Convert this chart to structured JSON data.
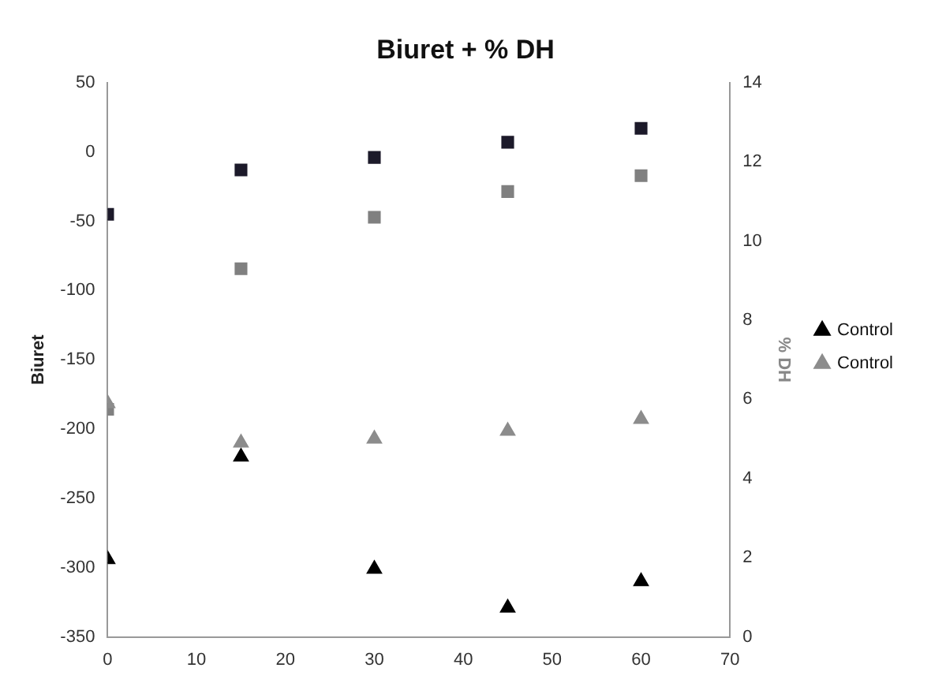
{
  "chart_data": {
    "type": "scatter",
    "title": "Biuret + % DH",
    "ylabel": "Biuret",
    "y2label": "% DH",
    "x": [
      0,
      15,
      30,
      45,
      60
    ],
    "series": [
      {
        "name": "Control",
        "color": "#000000",
        "marker": "triangle",
        "values": [
          -294,
          -220,
          -301,
          -329,
          -310
        ]
      },
      {
        "color": "#1c1a2a",
        "marker": "square",
        "values": [
          -45,
          -13,
          -4,
          7,
          17
        ]
      },
      {
        "name": "Control",
        "color": "#8c8c8c",
        "marker": "triangle",
        "axis": "y2",
        "values": [
          5.9,
          4.9,
          5.0,
          5.2,
          5.5
        ]
      },
      {
        "color": "#808080",
        "marker": "square",
        "axis": "y2",
        "values": [
          5.75,
          9.3,
          10.6,
          11.25,
          11.65
        ]
      }
    ],
    "xlim": [
      0,
      70
    ],
    "xticks": [
      0,
      10,
      20,
      30,
      40,
      50,
      60,
      70
    ],
    "ylim": [
      -350,
      50
    ],
    "yticks": [
      -350,
      -300,
      -250,
      -200,
      -150,
      -100,
      -50,
      0,
      50
    ],
    "y2lim": [
      0,
      14
    ],
    "y2ticks": [
      0,
      2,
      4,
      6,
      8,
      10,
      12,
      14
    ],
    "grid": false,
    "legend": "right"
  }
}
